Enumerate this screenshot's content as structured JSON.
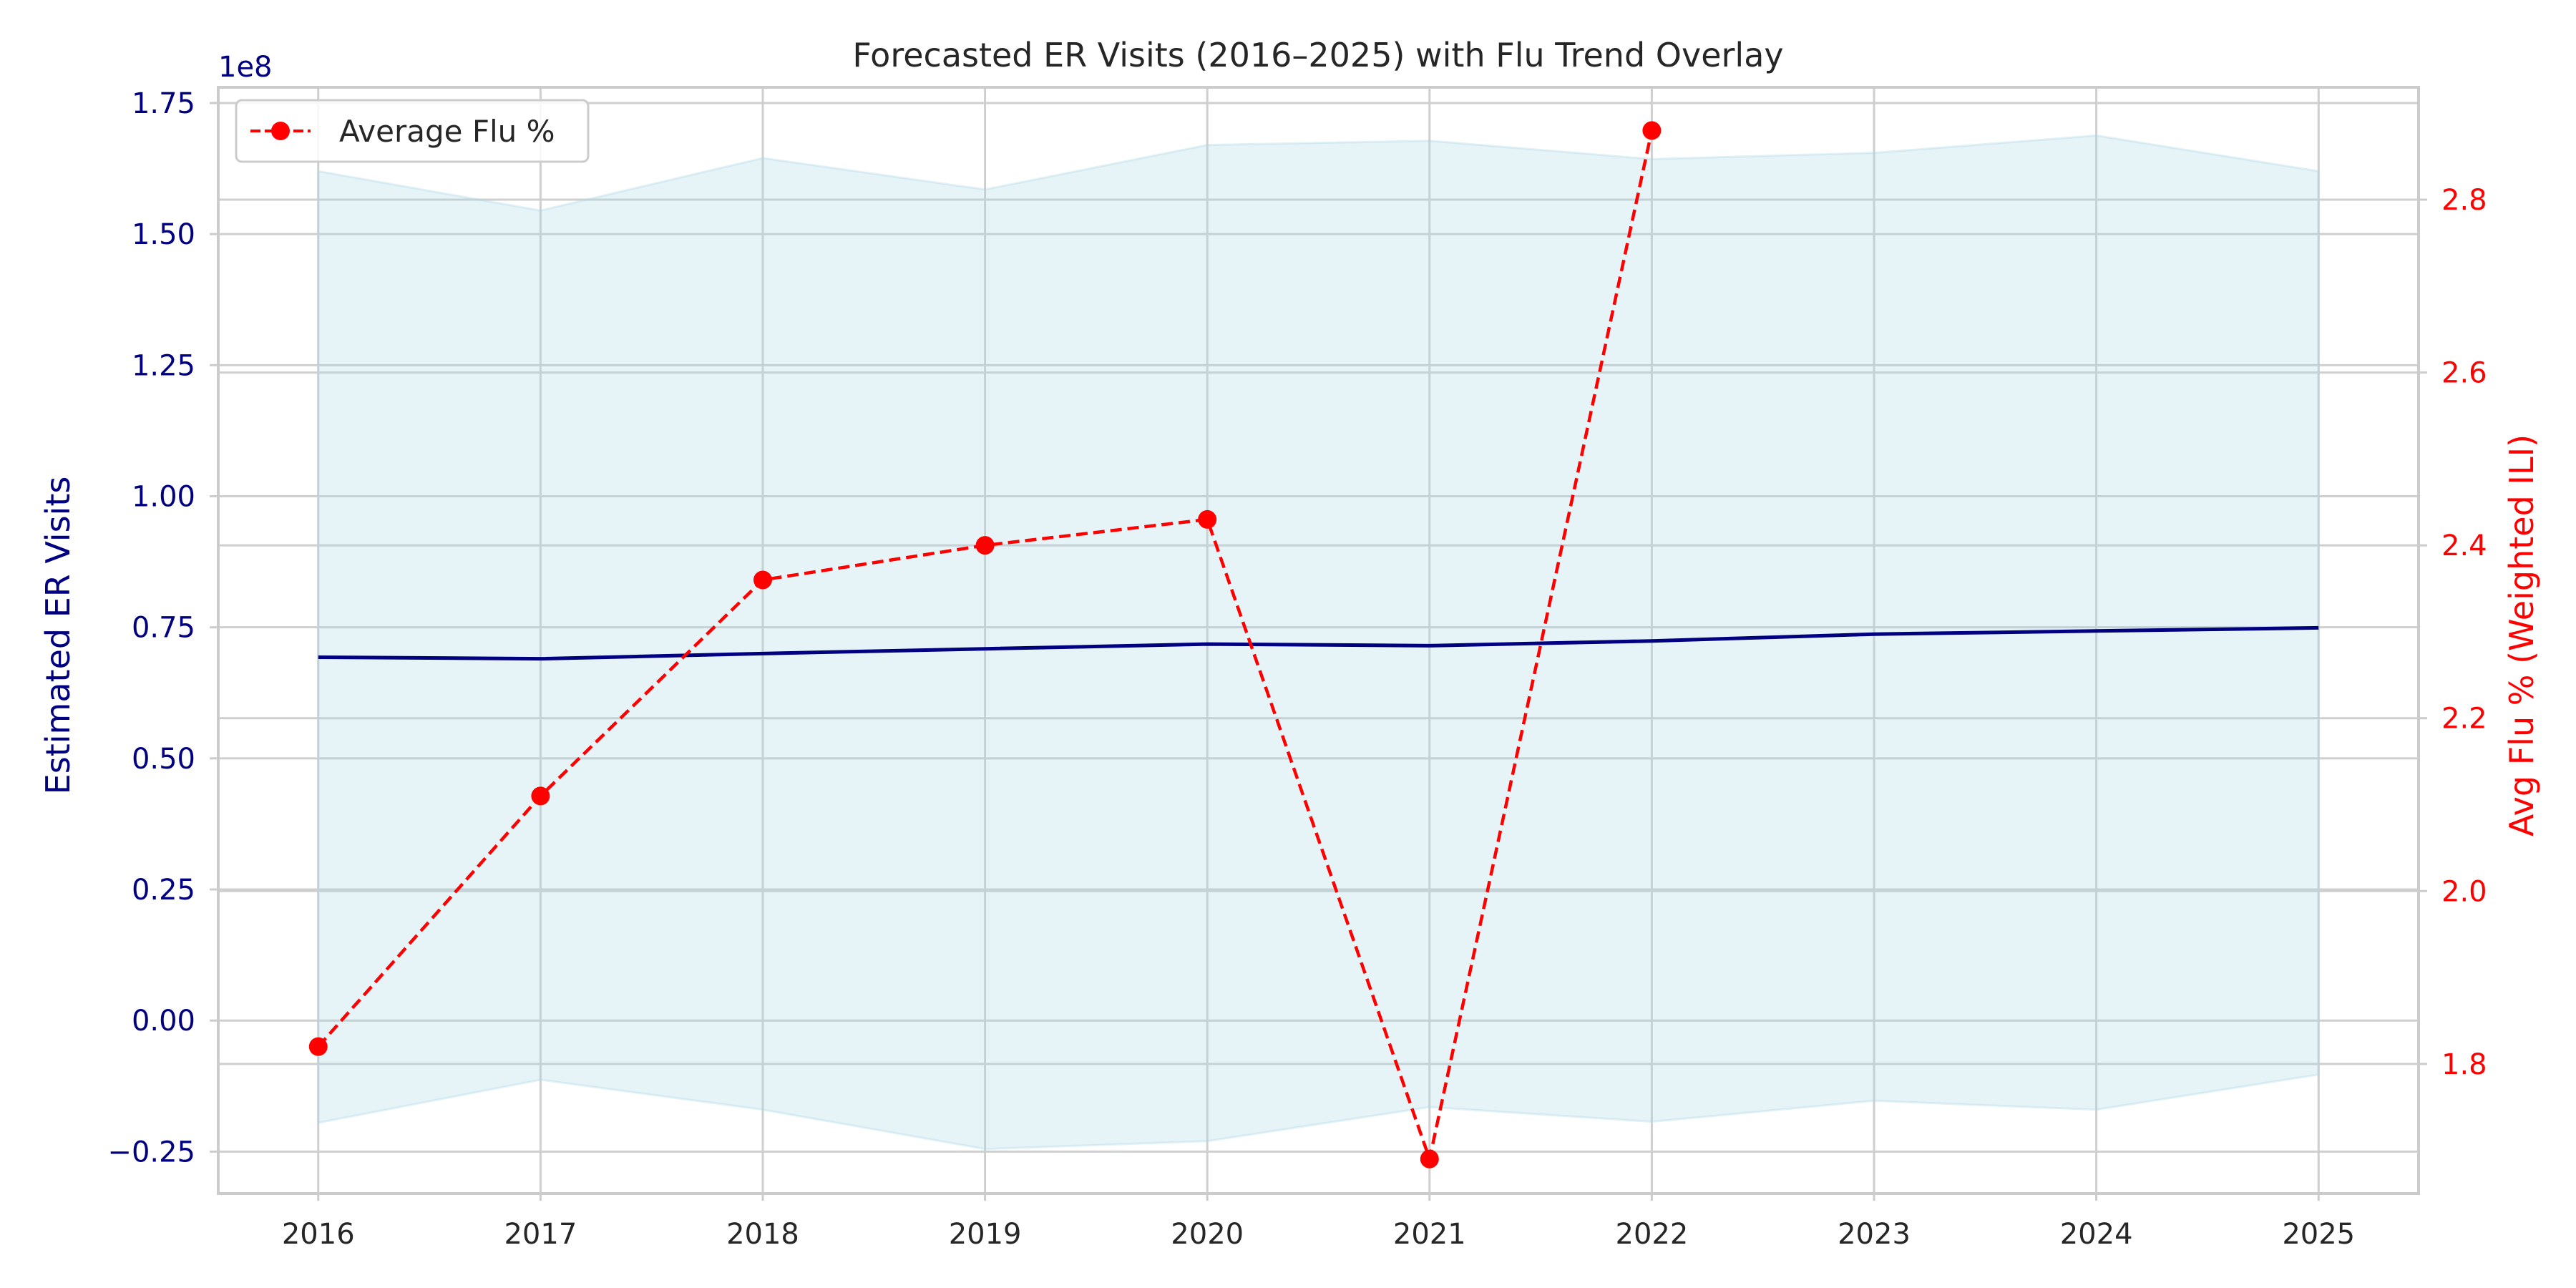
{
  "chart_data": {
    "type": "line",
    "title": "Forecasted ER Visits (2016–2025) with Flu Trend Overlay",
    "x": [
      2016,
      2017,
      2018,
      2019,
      2020,
      2021,
      2022,
      2023,
      2024,
      2025
    ],
    "x_tick_labels": [
      "2016",
      "2017",
      "2018",
      "2019",
      "2020",
      "2021",
      "2022",
      "2023",
      "2024",
      "2025"
    ],
    "left_axis": {
      "label": "Estimated ER Visits",
      "offset_text": "1e8",
      "range": [
        -0.33,
        1.78
      ],
      "ticks": [
        -0.25,
        0,
        0.25,
        0.5,
        0.75,
        1.0,
        1.25,
        1.5,
        1.75
      ],
      "tick_labels": [
        "−0.25",
        "0.00",
        "0.25",
        "0.50",
        "0.75",
        "1.00",
        "1.25",
        "1.50",
        "1.75"
      ],
      "color": "#000080"
    },
    "right_axis": {
      "label": "Avg Flu % (Weighted ILI)",
      "range": [
        1.65,
        2.93
      ],
      "ticks": [
        1.8,
        2.0,
        2.2,
        2.4,
        2.6,
        2.8
      ],
      "tick_labels": [
        "1.8",
        "2.0",
        "2.2",
        "2.4",
        "2.6",
        "2.8"
      ],
      "color": "#ff0000"
    },
    "series": [
      {
        "axis": "left",
        "style": "solid",
        "color": "#000080",
        "values": [
          0.693,
          0.69,
          0.7,
          0.709,
          0.718,
          0.715,
          0.724,
          0.737,
          0.743,
          0.749
        ]
      },
      {
        "axis": "left",
        "style": "band",
        "color": "#add8e6",
        "lower": [
          -0.195,
          -0.113,
          -0.17,
          -0.245,
          -0.23,
          -0.165,
          -0.193,
          -0.153,
          -0.17,
          -0.103
        ],
        "upper": [
          1.62,
          1.545,
          1.645,
          1.585,
          1.67,
          1.678,
          1.643,
          1.655,
          1.688,
          1.62
        ]
      },
      {
        "name": "Average Flu %",
        "axis": "right",
        "style": "dashed-markers",
        "color": "#ff0000",
        "values": [
          1.82,
          2.11,
          2.36,
          2.4,
          2.43,
          1.69,
          2.88,
          null,
          null,
          null
        ]
      }
    ],
    "grid": true,
    "legend": "top-left"
  }
}
